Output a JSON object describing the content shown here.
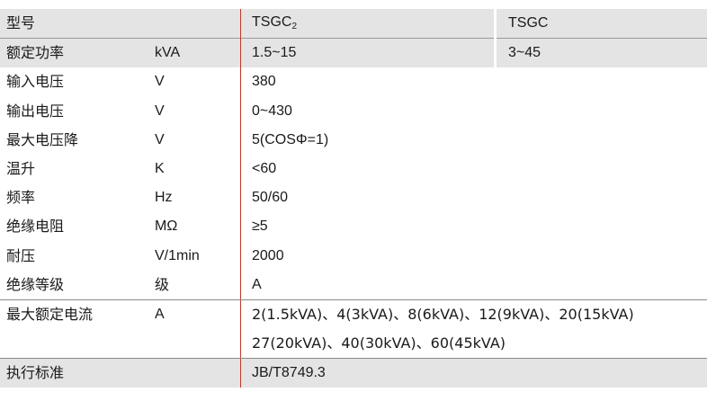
{
  "header": {
    "label": "型号",
    "col_a_main": "TSGC",
    "col_a_sub": "2",
    "col_b": "TSGC"
  },
  "rows": [
    {
      "param": "额定功率",
      "unit": "kVA",
      "value_a": "1.5~15",
      "value_b": "3~45"
    },
    {
      "param": "输入电压",
      "unit": "V",
      "value": "380"
    },
    {
      "param": "输出电压",
      "unit": "V",
      "value": "0~430"
    },
    {
      "param": "最大电压降",
      "unit": "V",
      "value": "5(COSΦ=1)"
    },
    {
      "param": "温升",
      "unit": "K",
      "value": "<60"
    },
    {
      "param": "频率",
      "unit": "Hz",
      "value": "50/60"
    },
    {
      "param": "绝缘电阻",
      "unit": "MΩ",
      "value": "≥5"
    },
    {
      "param": "耐压",
      "unit": "V/1min",
      "value": "2000"
    },
    {
      "param": "绝缘等级",
      "unit": "级",
      "value": "A"
    },
    {
      "param": "最大额定电流",
      "unit": "A",
      "value_line1": "2(1.5kVA)、4(3kVA)、8(6kVA)、12(9kVA)、20(15kVA)",
      "value_line2": "27(20kVA)、40(30kVA)、60(45kVA)"
    },
    {
      "param": "执行标准",
      "value": "JB/T8749.3"
    }
  ],
  "colors": {
    "shade": "#e4e4e4",
    "divider": "#c0392b"
  }
}
